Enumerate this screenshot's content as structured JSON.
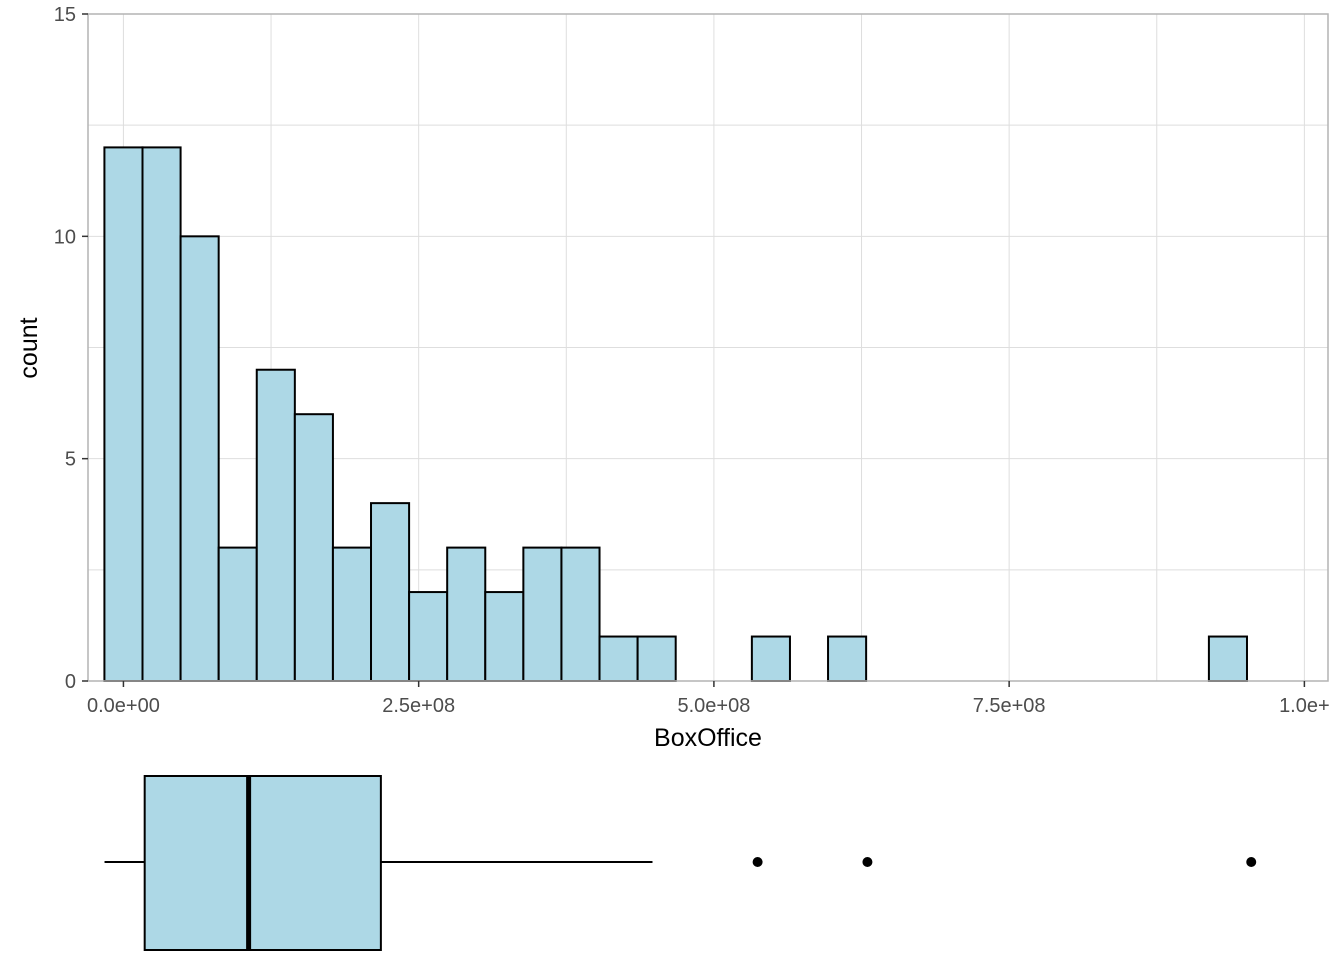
{
  "chart_data": [
    {
      "type": "bar",
      "subtype": "histogram",
      "xlabel": "BoxOffice",
      "ylabel": "count",
      "xlim": [
        -30000000,
        1020000000
      ],
      "ylim": [
        0,
        15
      ],
      "x_ticks": [
        {
          "value": 0,
          "label": "0.0e+00"
        },
        {
          "value": 250000000,
          "label": "2.5e+08"
        },
        {
          "value": 500000000,
          "label": "5.0e+08"
        },
        {
          "value": 750000000,
          "label": "7.5e+08"
        },
        {
          "value": 1000000000,
          "label": "1.0e+"
        }
      ],
      "y_ticks": [
        {
          "value": 0,
          "label": "0"
        },
        {
          "value": 5,
          "label": "5"
        },
        {
          "value": 10,
          "label": "10"
        },
        {
          "value": 15,
          "label": "15"
        }
      ],
      "grid": true,
      "bin_width": 32250000,
      "bins": [
        {
          "x0": -16100000,
          "x1": 16150000,
          "count": 12
        },
        {
          "x0": 16150000,
          "x1": 48400000,
          "count": 12
        },
        {
          "x0": 48400000,
          "x1": 80650000,
          "count": 10
        },
        {
          "x0": 80650000,
          "x1": 112900000,
          "count": 3
        },
        {
          "x0": 112900000,
          "x1": 145150000,
          "count": 7
        },
        {
          "x0": 145150000,
          "x1": 177400000,
          "count": 6
        },
        {
          "x0": 177400000,
          "x1": 209650000,
          "count": 3
        },
        {
          "x0": 209650000,
          "x1": 241900000,
          "count": 4
        },
        {
          "x0": 241900000,
          "x1": 274150000,
          "count": 2
        },
        {
          "x0": 274150000,
          "x1": 306400000,
          "count": 3
        },
        {
          "x0": 306400000,
          "x1": 338650000,
          "count": 2
        },
        {
          "x0": 338650000,
          "x1": 370900000,
          "count": 3
        },
        {
          "x0": 370900000,
          "x1": 403150000,
          "count": 3
        },
        {
          "x0": 403150000,
          "x1": 435400000,
          "count": 1
        },
        {
          "x0": 435400000,
          "x1": 467650000,
          "count": 1
        },
        {
          "x0": 467650000,
          "x1": 499900000,
          "count": 0
        },
        {
          "x0": 499900000,
          "x1": 532150000,
          "count": 0
        },
        {
          "x0": 532150000,
          "x1": 564400000,
          "count": 1
        },
        {
          "x0": 564400000,
          "x1": 596650000,
          "count": 0
        },
        {
          "x0": 596650000,
          "x1": 628900000,
          "count": 1
        },
        {
          "x0": 628900000,
          "x1": 661150000,
          "count": 0
        },
        {
          "x0": 661150000,
          "x1": 693400000,
          "count": 0
        },
        {
          "x0": 693400000,
          "x1": 725650000,
          "count": 0
        },
        {
          "x0": 725650000,
          "x1": 757900000,
          "count": 0
        },
        {
          "x0": 757900000,
          "x1": 790150000,
          "count": 0
        },
        {
          "x0": 790150000,
          "x1": 822400000,
          "count": 0
        },
        {
          "x0": 822400000,
          "x1": 854650000,
          "count": 0
        },
        {
          "x0": 854650000,
          "x1": 886900000,
          "count": 0
        },
        {
          "x0": 886900000,
          "x1": 919150000,
          "count": 0
        },
        {
          "x0": 919150000,
          "x1": 951400000,
          "count": 1
        }
      ],
      "fill_color": "#add8e6",
      "stroke_color": "#000000",
      "panel_border_color": "#b3b3b3",
      "grid_color": "#dedede"
    },
    {
      "type": "boxplot",
      "orientation": "horizontal",
      "shares_x_axis_with": 0,
      "whisker_low": -16000000,
      "q1": 18000000,
      "median": 106000000,
      "q3": 218000000,
      "whisker_high": 448000000,
      "outliers": [
        537000000,
        630000000,
        955000000
      ],
      "fill_color": "#add8e6",
      "stroke_color": "#000000"
    }
  ]
}
